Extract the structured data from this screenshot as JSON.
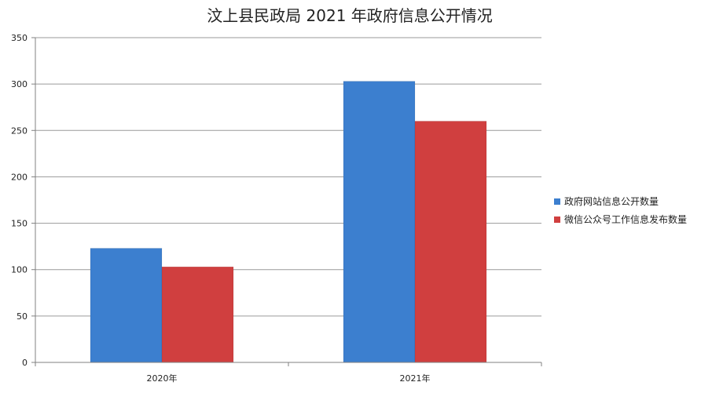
{
  "chart_data": {
    "type": "bar",
    "title": "汶上县民政局 2021 年政府信息公开情况",
    "xlabel": "",
    "ylabel": "",
    "categories": [
      "2020年",
      "2021年"
    ],
    "ylim": [
      0,
      350
    ],
    "yticks": [
      0,
      50,
      100,
      150,
      200,
      250,
      300,
      350
    ],
    "grid": true,
    "legend_position": "right",
    "series": [
      {
        "name": "政府网站信息公开数量",
        "color": "#3c7fcf",
        "values": [
          123,
          303
        ]
      },
      {
        "name": "微信公众号工作信息发布数量",
        "color": "#d03f3f",
        "values": [
          103,
          260
        ]
      }
    ]
  }
}
